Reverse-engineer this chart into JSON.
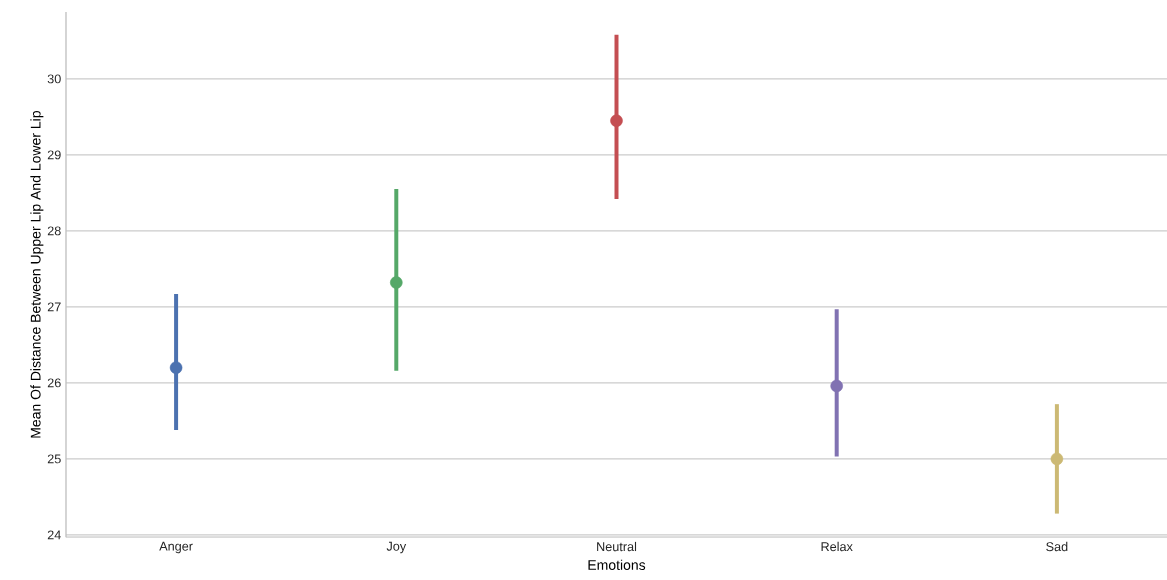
{
  "chart_data": {
    "type": "scatter",
    "xlabel": "Emotions",
    "ylabel": "Mean Of Distance Between Upper Lip And Lower Lip",
    "categories": [
      "Anger",
      "Joy",
      "Neutral",
      "Relax",
      "Sad"
    ],
    "values": [
      26.2,
      27.32,
      29.45,
      25.96,
      25.0
    ],
    "errors": [
      [
        25.38,
        27.17
      ],
      [
        26.16,
        28.55
      ],
      [
        28.42,
        30.58
      ],
      [
        25.03,
        26.97
      ],
      [
        24.28,
        25.72
      ]
    ],
    "colors": [
      "#4c72b0",
      "#55a868",
      "#c44e52",
      "#8172b2",
      "#ccb974"
    ],
    "ylim": [
      23.97,
      30.88
    ],
    "yticks": [
      24,
      25,
      26,
      27,
      28,
      29,
      30
    ],
    "grid": "y",
    "marker": "circle"
  }
}
